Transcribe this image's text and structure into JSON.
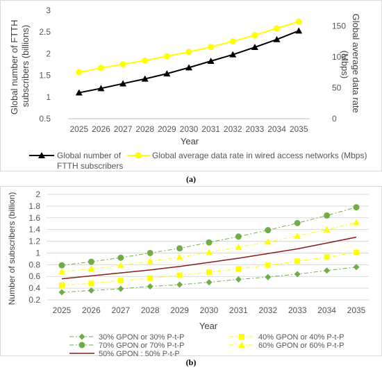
{
  "caption_a": "(a)",
  "caption_b": "(b)",
  "chart_data": [
    {
      "type": "line",
      "x": [
        2025,
        2026,
        2027,
        2028,
        2029,
        2030,
        2031,
        2032,
        2033,
        2034,
        2035
      ],
      "xlabel": "Year",
      "ylabel": "Global number of FTTH subscribers (billions)",
      "ylabel_lines": [
        "Global number of FTTH",
        "subscribers (billions)"
      ],
      "y2label": "Global average data rate (Mbps)",
      "y2label_lines": [
        "Global average data rate",
        "(Mbps)"
      ],
      "ylim": [
        0.5,
        3
      ],
      "yticks": [
        "0.5",
        "1",
        "1.5",
        "2",
        "2.5",
        "3"
      ],
      "y2lim": [
        0,
        175
      ],
      "y2ticks": [
        "0",
        "50",
        "100",
        "150"
      ],
      "grid": false,
      "legend": "bottom",
      "series": [
        {
          "name": "Global number of FTTH subscribers",
          "legend_lines": [
            "Global number of",
            "FTTH subscribers"
          ],
          "axis": "left",
          "color": "#000000",
          "marker": "triangle",
          "values": [
            1.1,
            1.2,
            1.31,
            1.42,
            1.54,
            1.68,
            1.83,
            1.98,
            2.15,
            2.33,
            2.53
          ]
        },
        {
          "name": "Global average data rate in wired access networks (Mbps)",
          "legend_lines": [
            "Global average data rate in wired access networks (Mbps)"
          ],
          "axis": "right",
          "color": "#FFFF00",
          "marker": "circle",
          "values": [
            75,
            82,
            88,
            94,
            101,
            108,
            116,
            125,
            135,
            146,
            157
          ]
        }
      ]
    },
    {
      "type": "line",
      "x": [
        2025,
        2026,
        2027,
        2028,
        2029,
        2030,
        2031,
        2032,
        2033,
        2034,
        2035
      ],
      "xlabel": "Year",
      "ylabel": "Number of subscribers (billion)",
      "ylim": [
        0.2,
        2
      ],
      "yticks": [
        "0.2",
        "0.4",
        "0.6",
        "0.8",
        "1",
        "1.2",
        "1.4",
        "1.6",
        "1.8",
        "2"
      ],
      "grid": true,
      "legend": "bottom",
      "series": [
        {
          "name": "30% GPON or 30% P-t-P",
          "color": "#70AD47",
          "marker": "diamond",
          "dash": "dashdot",
          "values": [
            0.33,
            0.36,
            0.39,
            0.43,
            0.46,
            0.5,
            0.55,
            0.59,
            0.64,
            0.7,
            0.76
          ]
        },
        {
          "name": "40% GPON or 40% P-t-P",
          "color": "#FFFF00",
          "marker": "square",
          "dash": "dashdot",
          "values": [
            0.45,
            0.48,
            0.53,
            0.57,
            0.62,
            0.67,
            0.73,
            0.79,
            0.86,
            0.93,
            1.01
          ]
        },
        {
          "name": "70% GPON or 70% P-t-P",
          "color": "#70AD47",
          "marker": "circle",
          "dash": "dashdot",
          "values": [
            0.79,
            0.85,
            0.92,
            1.0,
            1.08,
            1.18,
            1.28,
            1.39,
            1.51,
            1.64,
            1.78
          ]
        },
        {
          "name": "60% GPON or 60% P-t-P",
          "color": "#FFFF00",
          "marker": "triangle",
          "dash": "dashdot",
          "values": [
            0.68,
            0.73,
            0.79,
            0.86,
            0.93,
            1.01,
            1.1,
            1.19,
            1.29,
            1.4,
            1.52
          ]
        },
        {
          "name": "50% GPON : 50% P-t-P",
          "color": "#8B1A1A",
          "marker": "none",
          "dash": "solid",
          "values": [
            0.56,
            0.61,
            0.66,
            0.71,
            0.77,
            0.84,
            0.91,
            0.99,
            1.07,
            1.17,
            1.27
          ]
        }
      ]
    }
  ]
}
